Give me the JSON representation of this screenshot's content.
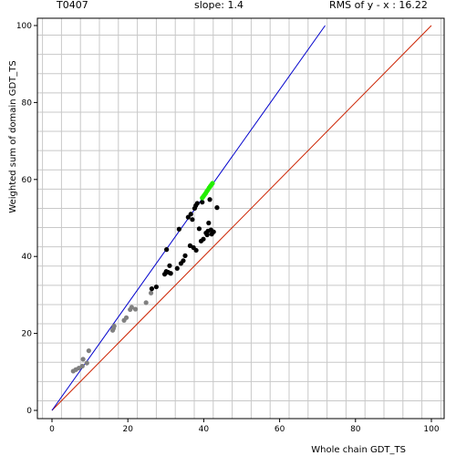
{
  "header": {
    "target": "T0407",
    "slope": "slope: 1.4",
    "rms": "RMS of  y - x : 16.22"
  },
  "chart_data": {
    "type": "scatter",
    "title": "",
    "xlabel": "Whole chain GDT_TS",
    "ylabel": "Weighted sum of domain GDT_TS",
    "xlim": [
      0,
      100
    ],
    "ylim": [
      0,
      100
    ],
    "x_ticks": [
      "0",
      "20",
      "40",
      "60",
      "80",
      "100"
    ],
    "y_ticks": [
      "0",
      "20",
      "40",
      "60",
      "80",
      "100"
    ],
    "grid": true,
    "colors": {
      "grey": "#808080",
      "black": "#000000",
      "green": "#22ee00",
      "identity_line": "#cc2200",
      "slope_line": "#0000cc",
      "grid": "#c8c8c8"
    },
    "lines": [
      {
        "kind": "identity",
        "x": [
          0,
          100
        ],
        "y": [
          0,
          100
        ],
        "color": "#cc2200"
      },
      {
        "kind": "slope",
        "x": [
          0,
          72
        ],
        "y": [
          0,
          100
        ],
        "color": "#0000cc"
      }
    ],
    "series": [
      {
        "color": "#808080",
        "points": [
          [
            5.6,
            10.2
          ],
          [
            6.3,
            10.6
          ],
          [
            7.1,
            11.0
          ],
          [
            8.0,
            11.5
          ],
          [
            8.2,
            13.3
          ],
          [
            9.2,
            12.3
          ],
          [
            9.7,
            15.5
          ],
          [
            16.0,
            20.8
          ],
          [
            16.2,
            21.3
          ],
          [
            16.4,
            21.9
          ],
          [
            19.0,
            23.4
          ],
          [
            19.6,
            24.1
          ],
          [
            20.6,
            26.2
          ],
          [
            21.0,
            26.8
          ],
          [
            22.0,
            26.3
          ],
          [
            24.8,
            28.0
          ],
          [
            26.1,
            30.5
          ]
        ]
      },
      {
        "color": "#000000",
        "points": [
          [
            26.3,
            31.6
          ],
          [
            27.5,
            32.1
          ],
          [
            29.7,
            35.4
          ],
          [
            30.1,
            36.1
          ],
          [
            30.2,
            41.8
          ],
          [
            30.6,
            35.9
          ],
          [
            31.0,
            37.6
          ],
          [
            31.3,
            35.6
          ],
          [
            33.0,
            36.9
          ],
          [
            33.5,
            47.1
          ],
          [
            34.0,
            38.2
          ],
          [
            34.6,
            38.9
          ],
          [
            35.1,
            40.2
          ],
          [
            35.9,
            50.2
          ],
          [
            36.4,
            42.8
          ],
          [
            36.6,
            51.0
          ],
          [
            37.0,
            49.6
          ],
          [
            37.3,
            42.3
          ],
          [
            37.6,
            52.5
          ],
          [
            37.9,
            53.2
          ],
          [
            38.0,
            41.6
          ],
          [
            38.3,
            53.8
          ],
          [
            38.8,
            47.2
          ],
          [
            39.3,
            44.0
          ],
          [
            39.6,
            54.1
          ],
          [
            39.9,
            44.5
          ],
          [
            40.6,
            46.1
          ],
          [
            40.9,
            45.6
          ],
          [
            41.1,
            46.6
          ],
          [
            41.3,
            48.7
          ],
          [
            41.6,
            54.8
          ],
          [
            41.9,
            46.9
          ],
          [
            42.1,
            45.8
          ],
          [
            42.6,
            46.4
          ],
          [
            43.5,
            52.7
          ]
        ]
      },
      {
        "color": "#22ee00",
        "points": [
          [
            39.6,
            55.2
          ],
          [
            39.9,
            55.6
          ],
          [
            40.2,
            56.0
          ],
          [
            40.5,
            56.4
          ],
          [
            40.8,
            56.9
          ],
          [
            41.1,
            57.3
          ],
          [
            41.4,
            57.8
          ],
          [
            41.7,
            58.2
          ],
          [
            42.0,
            58.6
          ],
          [
            42.3,
            59.0
          ]
        ]
      }
    ]
  }
}
